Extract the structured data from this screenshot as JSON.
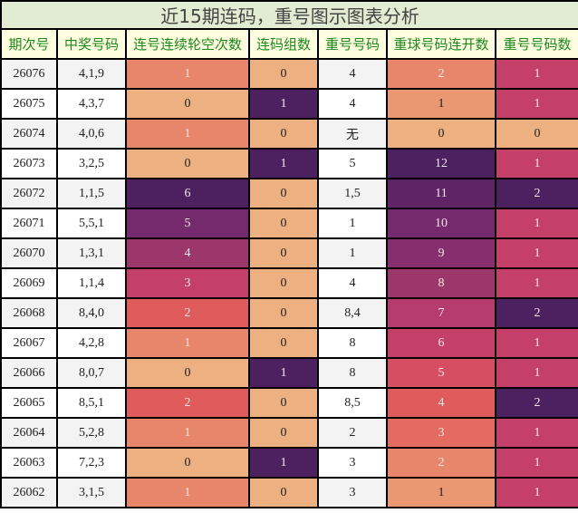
{
  "title": "近15期连码，重号图示图表分析",
  "headers": [
    "期次号",
    "中奖号码",
    "连号连续轮空次数",
    "连码组数",
    "重号号码",
    "重球号码连开数",
    "重号号码数"
  ],
  "colors": {
    "c0": "#edb081",
    "c1": "#e8866c",
    "c1b": "#e99872",
    "c2": "#e05b5c",
    "c3": "#c44069",
    "c4": "#9b376b",
    "c5": "#742a6c",
    "c6": "#4d2160",
    "c7": "#b53c6c",
    "c8": "#9b376b",
    "c9": "#872f6e",
    "c10": "#742a6c",
    "c11": "#5f2466",
    "c12": "#4b2160",
    "c2b": "#e56a60",
    "c3b": "#e8866c",
    "c5b": "#d64e62",
    "c6b": "#c44069",
    "c4b": "#e05b5c"
  },
  "rows": [
    {
      "issue": "26076",
      "numbers": "4,1,9",
      "gap": "1",
      "groups": "0",
      "repeat": "4",
      "streak": "2",
      "count": "1"
    },
    {
      "issue": "26075",
      "numbers": "4,3,7",
      "gap": "0",
      "groups": "1",
      "repeat": "4",
      "streak": "1",
      "count": "1"
    },
    {
      "issue": "26074",
      "numbers": "4,0,6",
      "gap": "1",
      "groups": "0",
      "repeat": "无",
      "streak": "0",
      "count": "0"
    },
    {
      "issue": "26073",
      "numbers": "3,2,5",
      "gap": "0",
      "groups": "1",
      "repeat": "5",
      "streak": "12",
      "count": "1"
    },
    {
      "issue": "26072",
      "numbers": "1,1,5",
      "gap": "6",
      "groups": "0",
      "repeat": "1,5",
      "streak": "11",
      "count": "2"
    },
    {
      "issue": "26071",
      "numbers": "5,5,1",
      "gap": "5",
      "groups": "0",
      "repeat": "1",
      "streak": "10",
      "count": "1"
    },
    {
      "issue": "26070",
      "numbers": "1,3,1",
      "gap": "4",
      "groups": "0",
      "repeat": "1",
      "streak": "9",
      "count": "1"
    },
    {
      "issue": "26069",
      "numbers": "1,1,4",
      "gap": "3",
      "groups": "0",
      "repeat": "4",
      "streak": "8",
      "count": "1"
    },
    {
      "issue": "26068",
      "numbers": "8,4,0",
      "gap": "2",
      "groups": "0",
      "repeat": "8,4",
      "streak": "7",
      "count": "2"
    },
    {
      "issue": "26067",
      "numbers": "4,2,8",
      "gap": "1",
      "groups": "0",
      "repeat": "8",
      "streak": "6",
      "count": "1"
    },
    {
      "issue": "26066",
      "numbers": "8,0,7",
      "gap": "0",
      "groups": "1",
      "repeat": "8",
      "streak": "5",
      "count": "1"
    },
    {
      "issue": "26065",
      "numbers": "8,5,1",
      "gap": "2",
      "groups": "0",
      "repeat": "8,5",
      "streak": "4",
      "count": "2"
    },
    {
      "issue": "26064",
      "numbers": "5,2,8",
      "gap": "1",
      "groups": "0",
      "repeat": "2",
      "streak": "3",
      "count": "1"
    },
    {
      "issue": "26063",
      "numbers": "7,2,3",
      "gap": "0",
      "groups": "1",
      "repeat": "3",
      "streak": "2",
      "count": "1"
    },
    {
      "issue": "26062",
      "numbers": "3,1,5",
      "gap": "1",
      "groups": "0",
      "repeat": "3",
      "streak": "1",
      "count": "1"
    }
  ]
}
